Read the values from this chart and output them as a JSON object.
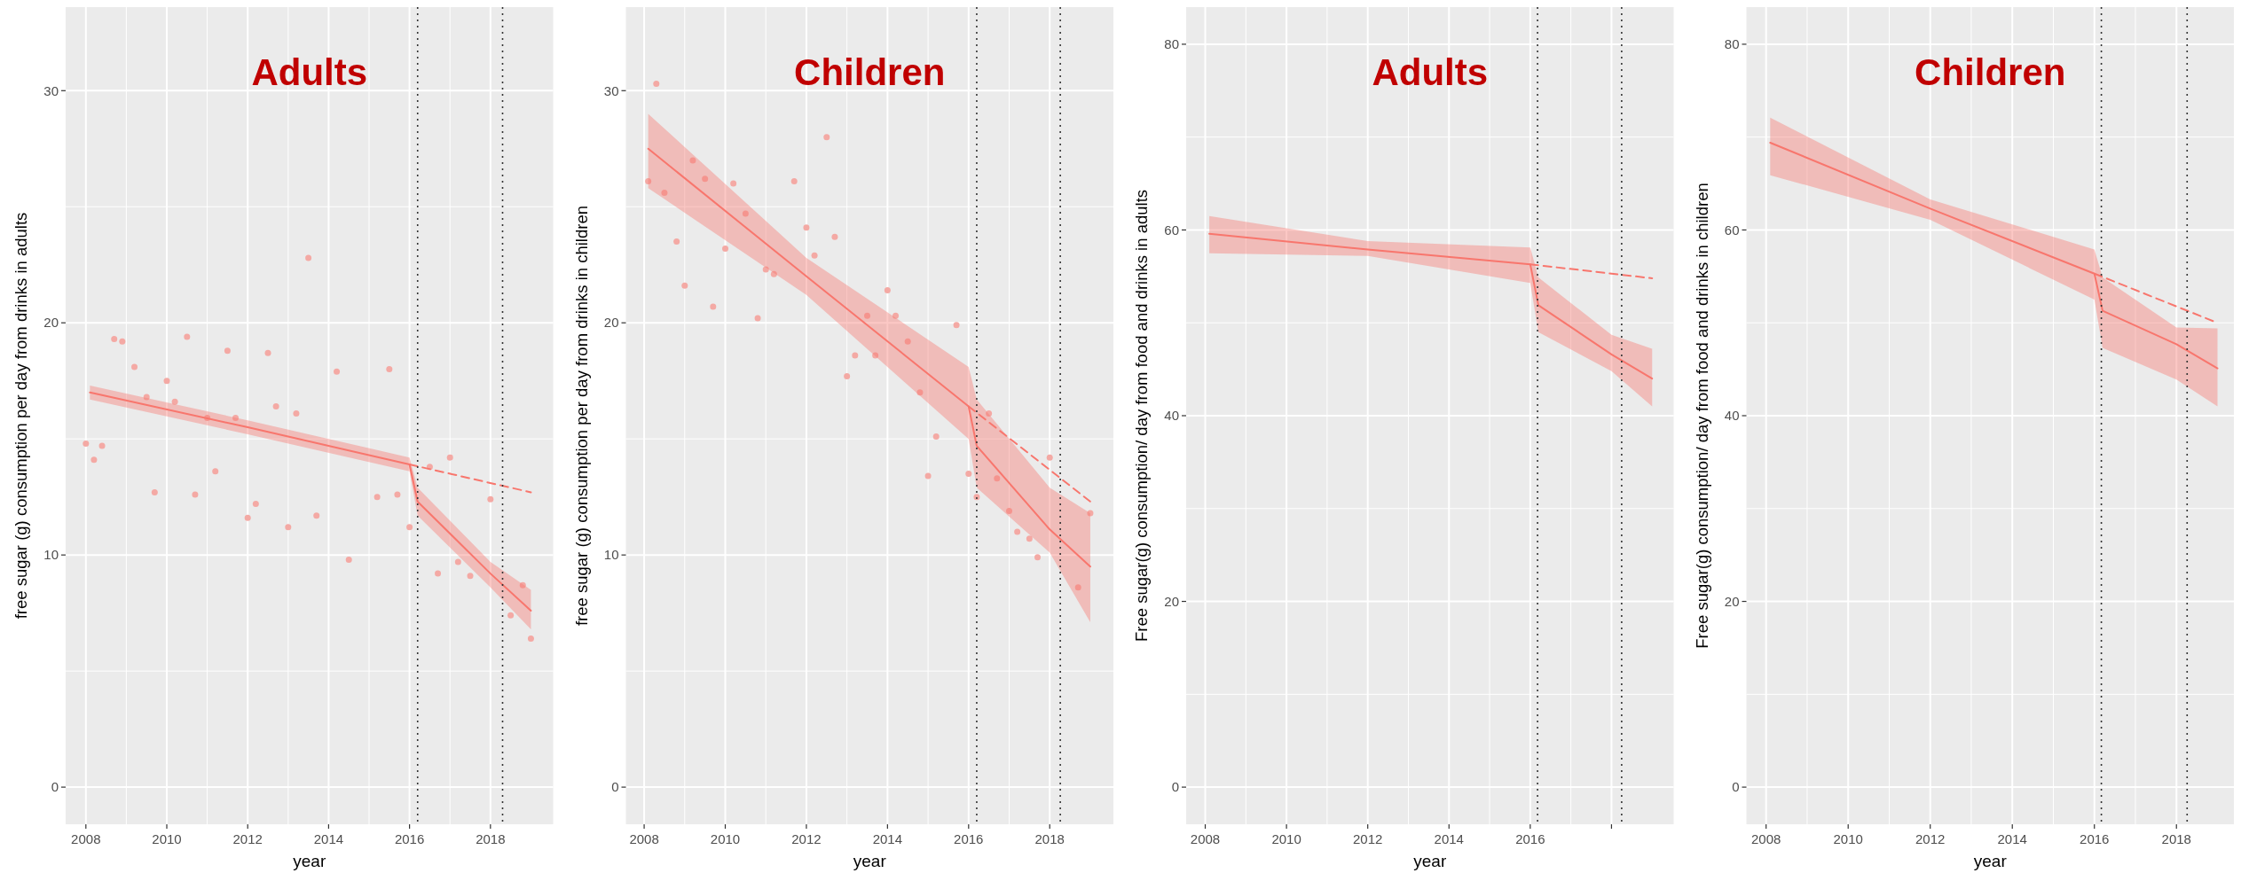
{
  "chart_data": [
    {
      "type": "line",
      "title": "Adults",
      "xlabel": "year",
      "ylabel": "free sugar (g) consumption per day from drinks in adults",
      "xlim": [
        2007.5,
        2019.55
      ],
      "ylim": [
        -1.6,
        33.6
      ],
      "xticks": [
        2008,
        2010,
        2012,
        2014,
        2016,
        2018
      ],
      "yticks": [
        0,
        10,
        20,
        30
      ],
      "grid": true,
      "ref_lines": [
        {
          "axis": "x",
          "value": 2016.2,
          "color": "#333333",
          "line_style": "dotted"
        },
        {
          "axis": "x",
          "value": 2018.3,
          "color": "#333333",
          "line_style": "dotted"
        }
      ],
      "series": [
        {
          "type": "scatter",
          "color": "#f4a9a4",
          "marker": "circle",
          "x": [
            2008.0,
            2008.2,
            2008.4,
            2008.7,
            2008.9,
            2009.2,
            2009.5,
            2009.7,
            2010.0,
            2010.2,
            2010.5,
            2010.7,
            2011.0,
            2011.2,
            2011.5,
            2011.7,
            2012.0,
            2012.2,
            2012.5,
            2012.7,
            2013.0,
            2013.2,
            2013.5,
            2013.7,
            2014.2,
            2014.5,
            2015.2,
            2015.5,
            2015.7,
            2016.0,
            2016.5,
            2016.7,
            2017.0,
            2017.2,
            2017.5,
            2018.0,
            2018.5,
            2018.8,
            2019.0
          ],
          "values": [
            14.8,
            14.1,
            14.7,
            19.3,
            19.2,
            18.1,
            16.8,
            12.7,
            17.5,
            16.6,
            19.4,
            12.6,
            15.9,
            13.6,
            18.8,
            15.9,
            11.6,
            12.2,
            18.7,
            16.4,
            11.2,
            16.1,
            22.8,
            11.7,
            17.9,
            9.8,
            12.5,
            18.0,
            12.6,
            11.2,
            13.8,
            9.2,
            14.2,
            9.7,
            9.1,
            12.4,
            7.4,
            8.7,
            6.4
          ]
        },
        {
          "color": "#f8766d",
          "line_style": "solid",
          "x": [
            2008.1,
            2012,
            2016,
            2016.2,
            2018,
            2019
          ],
          "values": [
            17.0,
            15.5,
            13.9,
            12.3,
            9.2,
            7.6
          ],
          "lower": [
            16.7,
            15.2,
            13.6,
            11.7,
            8.6,
            6.8
          ],
          "upper": [
            17.3,
            15.8,
            14.2,
            12.9,
            9.7,
            8.5
          ]
        },
        {
          "color": "#f8766d",
          "line_style": "dashed",
          "x": [
            2016,
            2019
          ],
          "values": [
            13.9,
            12.7
          ]
        }
      ]
    },
    {
      "type": "line",
      "title": "Children",
      "xlabel": "year",
      "ylabel": "free sugar (g) consumption per day from drinks in children",
      "xlim": [
        2007.55,
        2019.57
      ],
      "ylim": [
        -1.6,
        33.6
      ],
      "xticks": [
        2008,
        2010,
        2012,
        2014,
        2016,
        2018
      ],
      "yticks": [
        0,
        10,
        20,
        30
      ],
      "grid": true,
      "ref_lines": [
        {
          "axis": "x",
          "value": 2016.2,
          "color": "#333333",
          "line_style": "dotted"
        },
        {
          "axis": "x",
          "value": 2018.26,
          "color": "#333333",
          "line_style": "dotted"
        }
      ],
      "series": [
        {
          "type": "scatter",
          "color": "#f4a9a4",
          "marker": "circle",
          "x": [
            2008.1,
            2008.3,
            2008.5,
            2008.8,
            2009.0,
            2009.2,
            2009.5,
            2009.7,
            2010.0,
            2010.2,
            2010.5,
            2010.8,
            2011.0,
            2011.2,
            2011.7,
            2012.0,
            2012.2,
            2012.5,
            2012.7,
            2013.0,
            2013.2,
            2013.5,
            2013.7,
            2014.0,
            2014.2,
            2014.5,
            2014.8,
            2015.0,
            2015.2,
            2015.7,
            2016.0,
            2016.2,
            2016.5,
            2016.7,
            2017.0,
            2017.2,
            2017.5,
            2017.7,
            2018.0,
            2018.7,
            2019.0
          ],
          "values": [
            26.1,
            30.3,
            25.6,
            23.5,
            21.6,
            27.0,
            26.2,
            20.7,
            23.2,
            26.0,
            24.7,
            20.2,
            22.3,
            22.1,
            26.1,
            24.1,
            22.9,
            28.0,
            23.7,
            17.7,
            18.6,
            20.3,
            18.6,
            21.4,
            20.3,
            19.2,
            17.0,
            13.4,
            15.1,
            19.9,
            13.5,
            12.5,
            16.1,
            13.3,
            11.9,
            11.0,
            10.7,
            9.9,
            14.2,
            8.6,
            11.8
          ]
        },
        {
          "color": "#f8766d",
          "line_style": "solid",
          "x": [
            2008.1,
            2012,
            2016,
            2016.2,
            2018,
            2019
          ],
          "values": [
            27.5,
            22.0,
            16.4,
            14.7,
            11.1,
            9.5
          ],
          "lower": [
            25.8,
            21.2,
            15.0,
            12.9,
            10.1,
            7.1
          ],
          "upper": [
            29.0,
            22.8,
            18.1,
            16.7,
            12.9,
            11.8
          ]
        },
        {
          "color": "#f8766d",
          "line_style": "dashed",
          "x": [
            2016,
            2019
          ],
          "values": [
            16.4,
            12.3
          ]
        }
      ]
    },
    {
      "type": "line",
      "title": "Adults",
      "xlabel": "year",
      "ylabel": "Free sugar(g) consumption/ day from food and drinks in adults",
      "xlim": [
        2007.53,
        2019.53
      ],
      "ylim": [
        -4,
        84
      ],
      "xticks": [
        2008,
        2010,
        2012,
        2014,
        2016,
        {
          "value": 2018,
          "label": null
        }
      ],
      "yticks": [
        0,
        20,
        40,
        60,
        80
      ],
      "grid": true,
      "ref_lines": [
        {
          "axis": "x",
          "value": 2016.18,
          "color": "#333333",
          "line_style": "dotted"
        },
        {
          "axis": "x",
          "value": 2018.25,
          "color": "#333333",
          "line_style": "dotted"
        }
      ],
      "series": [
        {
          "color": "#f8766d",
          "line_style": "solid",
          "x": [
            2008.1,
            2012,
            2016,
            2016.2,
            2018,
            2019
          ],
          "values": [
            59.6,
            57.9,
            56.3,
            51.9,
            46.6,
            44.0
          ],
          "lower": [
            57.5,
            57.2,
            54.3,
            49.0,
            44.8,
            41.0
          ],
          "upper": [
            61.5,
            58.8,
            58.1,
            54.9,
            48.7,
            47.2
          ]
        },
        {
          "color": "#f8766d",
          "line_style": "dashed",
          "x": [
            2016,
            2019
          ],
          "values": [
            56.3,
            54.8
          ]
        }
      ]
    },
    {
      "type": "line",
      "title": "Children",
      "xlabel": "year",
      "ylabel": "Free sugar(g) consumption/ day from food and drinks in children",
      "xlim": [
        2007.52,
        2019.4
      ],
      "ylim": [
        -4,
        84
      ],
      "xticks": [
        2008,
        2010,
        2012,
        2014,
        2016,
        2018
      ],
      "yticks": [
        0,
        20,
        40,
        60,
        80
      ],
      "grid": true,
      "ref_lines": [
        {
          "axis": "x",
          "value": 2016.17,
          "color": "#333333",
          "line_style": "dotted"
        },
        {
          "axis": "x",
          "value": 2018.26,
          "color": "#333333",
          "line_style": "dotted"
        }
      ],
      "series": [
        {
          "color": "#f8766d",
          "line_style": "solid",
          "x": [
            2008.1,
            2012,
            2016,
            2016.2,
            2018,
            2019
          ],
          "values": [
            69.4,
            62.3,
            55.3,
            51.3,
            47.7,
            45.1
          ],
          "lower": [
            65.9,
            61.1,
            52.5,
            47.3,
            43.9,
            41.0
          ],
          "upper": [
            72.1,
            63.3,
            57.9,
            54.9,
            49.5,
            49.4
          ]
        },
        {
          "color": "#f8766d",
          "line_style": "dashed",
          "x": [
            2016,
            2019
          ],
          "values": [
            55.3,
            50.0
          ]
        }
      ]
    }
  ]
}
